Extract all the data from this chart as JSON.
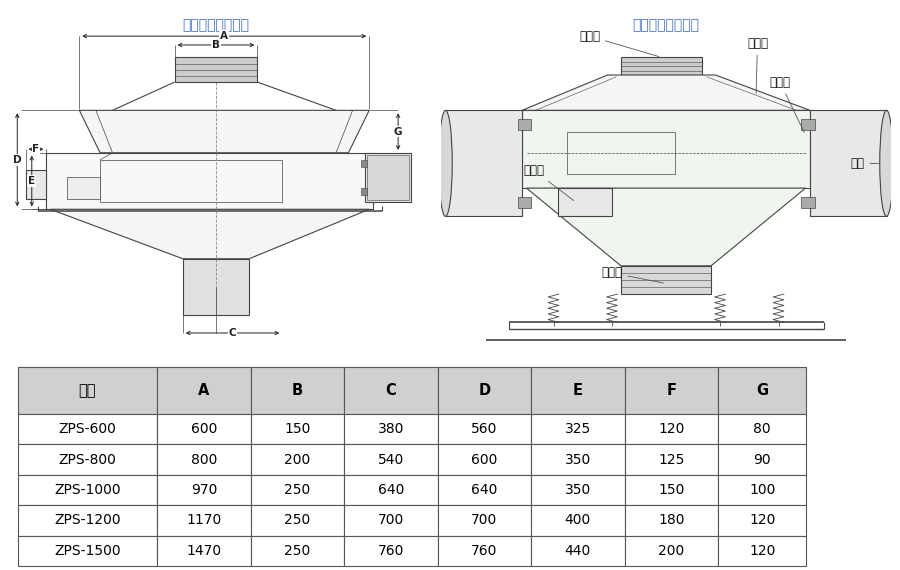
{
  "title_left": "直排筛外形尺寸图",
  "title_right": "直排筛外形结构图",
  "table_headers": [
    "型号",
    "A",
    "B",
    "C",
    "D",
    "E",
    "F",
    "G"
  ],
  "table_rows": [
    [
      "ZPS-600",
      "600",
      "150",
      "380",
      "560",
      "325",
      "120",
      "80"
    ],
    [
      "ZPS-800",
      "800",
      "200",
      "540",
      "600",
      "350",
      "125",
      "90"
    ],
    [
      "ZPS-1000",
      "970",
      "250",
      "640",
      "640",
      "350",
      "150",
      "100"
    ],
    [
      "ZPS-1200",
      "1170",
      "250",
      "700",
      "700",
      "400",
      "180",
      "120"
    ],
    [
      "ZPS-1500",
      "1470",
      "250",
      "760",
      "760",
      "440",
      "200",
      "120"
    ]
  ],
  "header_bg": "#d0d0d0",
  "text_color": "#000000",
  "bg_color": "#ffffff",
  "title_color": "#4472c4",
  "right_diagram_labels": [
    "进料口",
    "防尘盖",
    "上框体",
    "排杂口",
    "出料口",
    "电机"
  ]
}
